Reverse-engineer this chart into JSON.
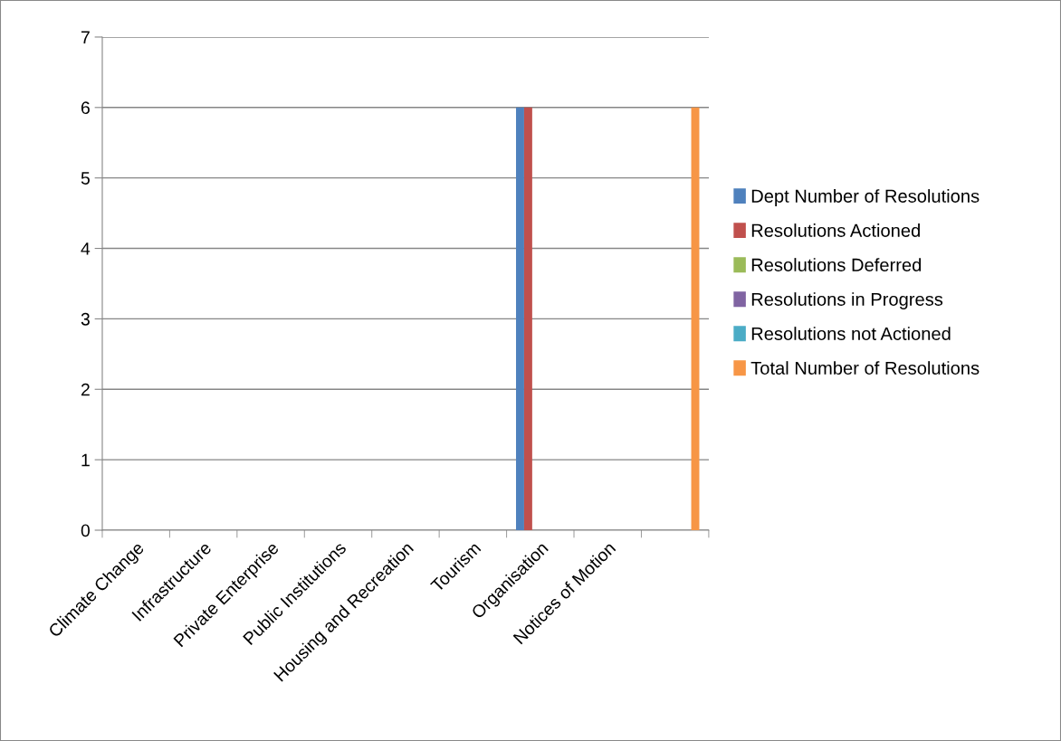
{
  "chart_data": {
    "type": "bar",
    "categories": [
      "Climate Change",
      "Infrastructure",
      "Private Enterprise",
      "Public Institutions",
      "Housing and Recreation",
      "Tourism",
      "Organisation",
      "Notices of Motion",
      null
    ],
    "series": [
      {
        "name": "Dept Number of Resolutions",
        "color": "#4f81bd",
        "values": [
          0,
          0,
          0,
          0,
          0,
          0,
          6,
          0,
          0
        ]
      },
      {
        "name": "Resolutions Actioned",
        "color": "#c0504d",
        "values": [
          0,
          0,
          0,
          0,
          0,
          0,
          6,
          0,
          0
        ]
      },
      {
        "name": "Resolutions Deferred",
        "color": "#9bbb59",
        "values": [
          0,
          0,
          0,
          0,
          0,
          0,
          0,
          0,
          0
        ]
      },
      {
        "name": "Resolutions in Progress",
        "color": "#8064a2",
        "values": [
          0,
          0,
          0,
          0,
          0,
          0,
          0,
          0,
          0
        ]
      },
      {
        "name": "Resolutions not Actioned",
        "color": "#4bacc6",
        "values": [
          0,
          0,
          0,
          0,
          0,
          0,
          0,
          0,
          0
        ]
      },
      {
        "name": "Total Number of Resolutions",
        "color": "#f79646",
        "values": [
          0,
          0,
          0,
          0,
          0,
          0,
          0,
          0,
          6
        ]
      }
    ],
    "ylim": [
      0,
      7
    ],
    "yticks": [
      0,
      1,
      2,
      3,
      4,
      5,
      6,
      7
    ],
    "grid": "y",
    "legend": "right"
  }
}
